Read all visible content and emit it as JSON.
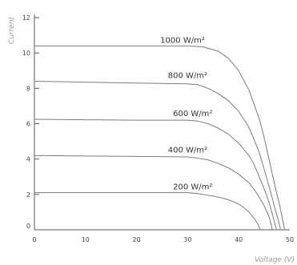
{
  "chart_data": {
    "type": "line",
    "title": "",
    "xlabel": "Voltage (V)",
    "ylabel": "Current",
    "xlim": [
      0,
      50
    ],
    "ylim": [
      0,
      12
    ],
    "xticks": [
      "0",
      "10",
      "20",
      "30",
      "40",
      "50"
    ],
    "yticks": [
      "0",
      "2",
      "4",
      "6",
      "8",
      "10",
      "12"
    ],
    "grid": false,
    "line_color": "#7a7a7a",
    "axis_color": "#555555",
    "series": [
      {
        "name": "1000 W/m²",
        "x": [
          0,
          10,
          20,
          30,
          33,
          36,
          38,
          40,
          42,
          44,
          45,
          46,
          47,
          48,
          48.5,
          49
        ],
        "y": [
          10.4,
          10.4,
          10.4,
          10.4,
          10.35,
          10.1,
          9.7,
          9.0,
          7.9,
          6.3,
          5.2,
          3.9,
          2.6,
          1.4,
          0.7,
          0
        ]
      },
      {
        "name": "800 W/m²",
        "x": [
          0,
          10,
          20,
          30,
          32,
          34,
          36,
          38,
          40,
          42,
          44,
          45,
          46,
          47,
          47.7,
          48.2
        ],
        "y": [
          8.4,
          8.35,
          8.3,
          8.25,
          8.2,
          8.0,
          7.7,
          7.3,
          6.7,
          5.8,
          4.4,
          3.4,
          2.4,
          1.3,
          0.6,
          0
        ]
      },
      {
        "name": "600 W/m²",
        "x": [
          0,
          10,
          20,
          30,
          32,
          34,
          36,
          38,
          40,
          42,
          43,
          44,
          45,
          46,
          47.4
        ],
        "y": [
          6.25,
          6.22,
          6.2,
          6.2,
          6.15,
          6.0,
          5.75,
          5.4,
          4.9,
          4.2,
          3.7,
          3.0,
          2.3,
          1.5,
          0
        ]
      },
      {
        "name": "400 W/m²",
        "x": [
          0,
          10,
          20,
          30,
          32,
          34,
          36,
          38,
          40,
          42,
          43,
          44,
          45,
          46,
          46.6
        ],
        "y": [
          4.2,
          4.17,
          4.15,
          4.12,
          4.05,
          3.95,
          3.75,
          3.5,
          3.15,
          2.65,
          2.3,
          1.85,
          1.35,
          0.7,
          0
        ]
      },
      {
        "name": "200 W/m²",
        "x": [
          0,
          10,
          20,
          30,
          32,
          34,
          36,
          38,
          40,
          41,
          42,
          43,
          43.8,
          44.2
        ],
        "y": [
          2.1,
          2.1,
          2.1,
          2.1,
          2.05,
          1.95,
          1.85,
          1.7,
          1.45,
          1.25,
          1.0,
          0.65,
          0.3,
          0
        ]
      }
    ],
    "label_positions_x": [
      29,
      30,
      31,
      30,
      31
    ]
  }
}
